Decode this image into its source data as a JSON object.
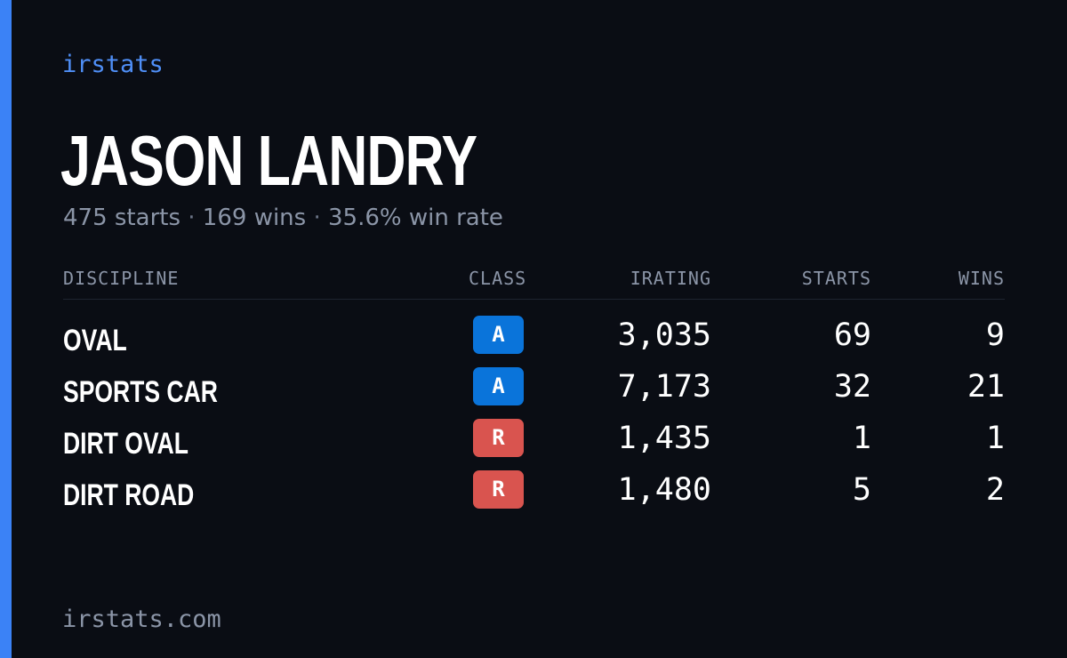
{
  "brand": "irstats",
  "player": {
    "name": "JASON LANDRY",
    "starts_text": "475 starts",
    "wins_text": "169 wins",
    "win_rate_text": "35.6% win rate",
    "separator": "·"
  },
  "table": {
    "headers": {
      "discipline": "DISCIPLINE",
      "class": "CLASS",
      "irating": "IRATING",
      "starts": "STARTS",
      "wins": "WINS"
    },
    "rows": [
      {
        "discipline": "OVAL",
        "class": "A",
        "class_color": "#0a74da",
        "irating": "3,035",
        "starts": "69",
        "wins": "9"
      },
      {
        "discipline": "SPORTS CAR",
        "class": "A",
        "class_color": "#0a74da",
        "irating": "7,173",
        "starts": "32",
        "wins": "21"
      },
      {
        "discipline": "DIRT OVAL",
        "class": "R",
        "class_color": "#d9544f",
        "irating": "1,435",
        "starts": "1",
        "wins": "1"
      },
      {
        "discipline": "DIRT ROAD",
        "class": "R",
        "class_color": "#d9544f",
        "irating": "1,480",
        "starts": "5",
        "wins": "2"
      }
    ]
  },
  "footer": {
    "url": "irstats.com"
  },
  "colors": {
    "background": "#0a0d14",
    "accent": "#3b82f6",
    "muted_text": "#8b95a7"
  }
}
